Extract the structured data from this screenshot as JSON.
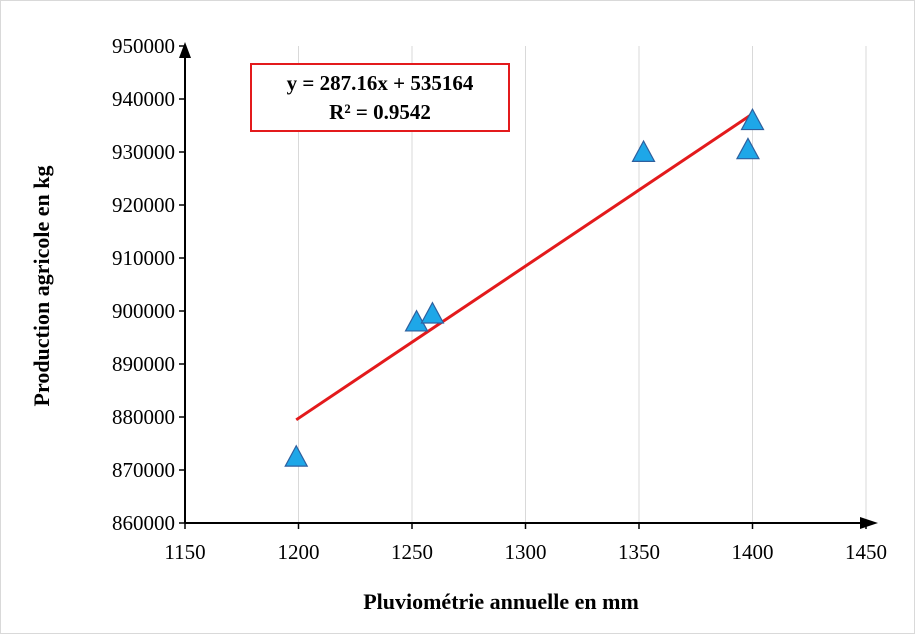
{
  "chart_data": {
    "type": "scatter",
    "xlabel": "Pluviométrie annuelle en mm",
    "ylabel": "Production agricole en kg",
    "xlim": [
      1150,
      1450
    ],
    "ylim": [
      860000,
      950000
    ],
    "x_ticks": [
      1150,
      1200,
      1250,
      1300,
      1350,
      1400,
      1450
    ],
    "y_ticks": [
      860000,
      870000,
      880000,
      890000,
      900000,
      910000,
      920000,
      930000,
      940000,
      950000
    ],
    "grid": "vertical",
    "marker": "triangle",
    "series": [
      {
        "points": [
          {
            "x": 1199,
            "y": 872500
          },
          {
            "x": 1252,
            "y": 898000
          },
          {
            "x": 1259,
            "y": 899500
          },
          {
            "x": 1352,
            "y": 930000
          },
          {
            "x": 1398,
            "y": 930500
          },
          {
            "x": 1400,
            "y": 936000
          }
        ]
      }
    ],
    "trendline": {
      "slope": 287.16,
      "intercept": 535164,
      "x_range": [
        1199,
        1400
      ]
    },
    "annotation": {
      "equation": "y = 287.16x + 535164",
      "r_squared": "R² = 0.9542"
    }
  },
  "colors": {
    "marker_fill": "#1ea7e8",
    "marker_stroke": "#2e5f9e",
    "trendline": "#e31a1c",
    "annotation_border": "#e31a1c",
    "grid": "#d9d9d9",
    "axis": "#000000"
  }
}
